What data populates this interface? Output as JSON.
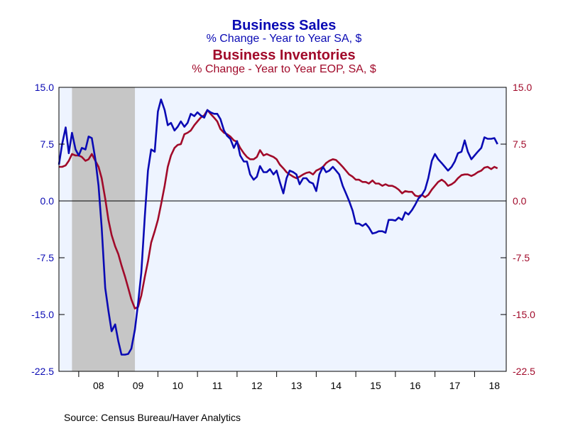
{
  "colors": {
    "sales": "#0a0ab4",
    "inventories": "#a10a2a",
    "plot_background": "#eef4ff",
    "recession_shade": "#c6c6c6"
  },
  "titles": {
    "sales_title": "Business Sales",
    "sales_subtitle": "% Change - Year to Year    SA, $",
    "inv_title": "Business Inventories",
    "inv_subtitle": "% Change - Year to Year    EOP, SA, $"
  },
  "source": "Source:  Census Bureau/Haver Analytics",
  "chart_data": {
    "type": "line",
    "title": "Business Sales / Business Inventories",
    "ylim": [
      -22.5,
      15.0
    ],
    "left_ticks": [
      "15.0",
      "7.5",
      "0.0",
      "-7.5",
      "-15.0",
      "-22.5"
    ],
    "right_ticks": [
      "15.0",
      "7.5",
      "0.0",
      "-7.5",
      "-15.0",
      "-22.5"
    ],
    "x_range": [
      2007.5,
      2018.8
    ],
    "x_ticks": [
      {
        "label": "08",
        "pos": 2008.5
      },
      {
        "label": "09",
        "pos": 2009.5
      },
      {
        "label": "10",
        "pos": 2010.5
      },
      {
        "label": "11",
        "pos": 2011.5
      },
      {
        "label": "12",
        "pos": 2012.5
      },
      {
        "label": "13",
        "pos": 2013.5
      },
      {
        "label": "14",
        "pos": 2014.5
      },
      {
        "label": "15",
        "pos": 2015.5
      },
      {
        "label": "16",
        "pos": 2016.5
      },
      {
        "label": "17",
        "pos": 2017.5
      },
      {
        "label": "18",
        "pos": 2018.5
      }
    ],
    "year_boundaries": [
      2008,
      2009,
      2010,
      2011,
      2012,
      2013,
      2014,
      2015,
      2016,
      2017,
      2018
    ],
    "recession": [
      2007.83,
      2009.42
    ],
    "zero_line": 0.0,
    "series": [
      {
        "name": "Business Sales",
        "color": "#0a0ab4",
        "points": [
          [
            2007.5,
            4.8
          ],
          [
            2007.58,
            7.5
          ],
          [
            2007.67,
            9.7
          ],
          [
            2007.75,
            6.3
          ],
          [
            2007.83,
            9.0
          ],
          [
            2007.92,
            6.8
          ],
          [
            2008.0,
            6.0
          ],
          [
            2008.08,
            7.0
          ],
          [
            2008.17,
            6.8
          ],
          [
            2008.25,
            8.5
          ],
          [
            2008.33,
            8.3
          ],
          [
            2008.42,
            5.5
          ],
          [
            2008.5,
            2.0
          ],
          [
            2008.58,
            -3.5
          ],
          [
            2008.67,
            -11.5
          ],
          [
            2008.75,
            -14.5
          ],
          [
            2008.83,
            -17.2
          ],
          [
            2008.92,
            -16.3
          ],
          [
            2009.0,
            -18.5
          ],
          [
            2009.08,
            -20.3
          ],
          [
            2009.17,
            -20.3
          ],
          [
            2009.25,
            -20.2
          ],
          [
            2009.33,
            -19.5
          ],
          [
            2009.42,
            -17.0
          ],
          [
            2009.5,
            -13.5
          ],
          [
            2009.58,
            -9.5
          ],
          [
            2009.67,
            -2.0
          ],
          [
            2009.75,
            4.0
          ],
          [
            2009.83,
            6.8
          ],
          [
            2009.92,
            6.5
          ],
          [
            2010.0,
            11.8
          ],
          [
            2010.08,
            13.4
          ],
          [
            2010.17,
            12.0
          ],
          [
            2010.25,
            10.0
          ],
          [
            2010.33,
            10.3
          ],
          [
            2010.42,
            9.3
          ],
          [
            2010.5,
            9.8
          ],
          [
            2010.58,
            10.5
          ],
          [
            2010.67,
            9.8
          ],
          [
            2010.75,
            10.3
          ],
          [
            2010.83,
            11.5
          ],
          [
            2010.92,
            11.2
          ],
          [
            2011.0,
            11.7
          ],
          [
            2011.08,
            11.3
          ],
          [
            2011.17,
            11.0
          ],
          [
            2011.25,
            12.0
          ],
          [
            2011.33,
            11.7
          ],
          [
            2011.42,
            11.5
          ],
          [
            2011.5,
            11.5
          ],
          [
            2011.58,
            10.8
          ],
          [
            2011.67,
            9.3
          ],
          [
            2011.75,
            8.6
          ],
          [
            2011.83,
            8.2
          ],
          [
            2011.92,
            7.0
          ],
          [
            2012.0,
            7.9
          ],
          [
            2012.08,
            6.0
          ],
          [
            2012.17,
            5.2
          ],
          [
            2012.25,
            5.2
          ],
          [
            2012.33,
            3.5
          ],
          [
            2012.42,
            2.8
          ],
          [
            2012.5,
            3.2
          ],
          [
            2012.58,
            4.6
          ],
          [
            2012.67,
            3.8
          ],
          [
            2012.75,
            3.8
          ],
          [
            2012.83,
            4.2
          ],
          [
            2012.92,
            3.5
          ],
          [
            2013.0,
            4.0
          ],
          [
            2013.08,
            2.5
          ],
          [
            2013.17,
            1.0
          ],
          [
            2013.25,
            3.0
          ],
          [
            2013.33,
            4.0
          ],
          [
            2013.42,
            3.8
          ],
          [
            2013.5,
            3.5
          ],
          [
            2013.58,
            2.2
          ],
          [
            2013.67,
            3.0
          ],
          [
            2013.75,
            3.0
          ],
          [
            2013.83,
            2.5
          ],
          [
            2013.92,
            2.3
          ],
          [
            2014.0,
            1.3
          ],
          [
            2014.08,
            3.5
          ],
          [
            2014.17,
            4.5
          ],
          [
            2014.25,
            3.8
          ],
          [
            2014.33,
            4.0
          ],
          [
            2014.42,
            4.5
          ],
          [
            2014.5,
            4.0
          ],
          [
            2014.58,
            3.5
          ],
          [
            2014.67,
            2.0
          ],
          [
            2014.75,
            1.0
          ],
          [
            2014.83,
            0.0
          ],
          [
            2014.92,
            -1.3
          ],
          [
            2015.0,
            -3.0
          ],
          [
            2015.08,
            -3.0
          ],
          [
            2015.17,
            -3.3
          ],
          [
            2015.25,
            -3.0
          ],
          [
            2015.33,
            -3.5
          ],
          [
            2015.42,
            -4.3
          ],
          [
            2015.5,
            -4.2
          ],
          [
            2015.58,
            -4.0
          ],
          [
            2015.67,
            -4.0
          ],
          [
            2015.75,
            -4.2
          ],
          [
            2015.83,
            -2.5
          ],
          [
            2015.92,
            -2.5
          ],
          [
            2016.0,
            -2.6
          ],
          [
            2016.08,
            -2.2
          ],
          [
            2016.17,
            -2.5
          ],
          [
            2016.25,
            -1.5
          ],
          [
            2016.33,
            -1.8
          ],
          [
            2016.42,
            -1.2
          ],
          [
            2016.5,
            -0.5
          ],
          [
            2016.58,
            0.3
          ],
          [
            2016.67,
            0.8
          ],
          [
            2016.75,
            1.5
          ],
          [
            2016.83,
            3.0
          ],
          [
            2016.92,
            5.3
          ],
          [
            2017.0,
            6.2
          ],
          [
            2017.08,
            5.5
          ],
          [
            2017.17,
            5.0
          ],
          [
            2017.25,
            4.5
          ],
          [
            2017.33,
            4.0
          ],
          [
            2017.42,
            4.5
          ],
          [
            2017.5,
            5.2
          ],
          [
            2017.58,
            6.3
          ],
          [
            2017.67,
            6.5
          ],
          [
            2017.75,
            8.0
          ],
          [
            2017.83,
            6.5
          ],
          [
            2017.92,
            5.5
          ],
          [
            2018.0,
            6.0
          ],
          [
            2018.08,
            6.5
          ],
          [
            2018.17,
            7.0
          ],
          [
            2018.25,
            8.4
          ],
          [
            2018.33,
            8.2
          ],
          [
            2018.42,
            8.2
          ],
          [
            2018.5,
            8.3
          ],
          [
            2018.58,
            7.5
          ]
        ]
      },
      {
        "name": "Business Inventories",
        "color": "#a10a2a",
        "points": [
          [
            2007.5,
            4.5
          ],
          [
            2007.58,
            4.5
          ],
          [
            2007.67,
            4.7
          ],
          [
            2007.75,
            5.3
          ],
          [
            2007.83,
            6.2
          ],
          [
            2007.92,
            6.0
          ],
          [
            2008.0,
            6.0
          ],
          [
            2008.08,
            5.8
          ],
          [
            2008.17,
            5.3
          ],
          [
            2008.25,
            5.5
          ],
          [
            2008.33,
            6.2
          ],
          [
            2008.42,
            5.3
          ],
          [
            2008.5,
            4.5
          ],
          [
            2008.58,
            3.0
          ],
          [
            2008.67,
            0.3
          ],
          [
            2008.75,
            -2.5
          ],
          [
            2008.83,
            -4.5
          ],
          [
            2008.92,
            -6.0
          ],
          [
            2009.0,
            -7.0
          ],
          [
            2009.08,
            -8.5
          ],
          [
            2009.17,
            -10.0
          ],
          [
            2009.25,
            -11.5
          ],
          [
            2009.33,
            -13.0
          ],
          [
            2009.42,
            -14.2
          ],
          [
            2009.5,
            -14.0
          ],
          [
            2009.58,
            -12.5
          ],
          [
            2009.67,
            -10.0
          ],
          [
            2009.75,
            -8.0
          ],
          [
            2009.83,
            -5.5
          ],
          [
            2009.92,
            -4.0
          ],
          [
            2010.0,
            -2.5
          ],
          [
            2010.08,
            -0.5
          ],
          [
            2010.17,
            2.0
          ],
          [
            2010.25,
            4.5
          ],
          [
            2010.33,
            6.0
          ],
          [
            2010.42,
            7.0
          ],
          [
            2010.5,
            7.4
          ],
          [
            2010.58,
            7.5
          ],
          [
            2010.67,
            8.8
          ],
          [
            2010.75,
            9.0
          ],
          [
            2010.83,
            9.3
          ],
          [
            2010.92,
            10.0
          ],
          [
            2011.0,
            10.5
          ],
          [
            2011.08,
            11.0
          ],
          [
            2011.17,
            11.3
          ],
          [
            2011.25,
            12.0
          ],
          [
            2011.33,
            11.5
          ],
          [
            2011.42,
            11.0
          ],
          [
            2011.5,
            10.5
          ],
          [
            2011.58,
            9.5
          ],
          [
            2011.67,
            9.0
          ],
          [
            2011.75,
            8.8
          ],
          [
            2011.83,
            8.5
          ],
          [
            2011.92,
            8.0
          ],
          [
            2012.0,
            7.8
          ],
          [
            2012.08,
            7.0
          ],
          [
            2012.17,
            6.3
          ],
          [
            2012.25,
            5.8
          ],
          [
            2012.33,
            5.5
          ],
          [
            2012.42,
            5.5
          ],
          [
            2012.5,
            5.8
          ],
          [
            2012.58,
            6.7
          ],
          [
            2012.67,
            6.0
          ],
          [
            2012.75,
            6.2
          ],
          [
            2012.83,
            6.0
          ],
          [
            2012.92,
            5.8
          ],
          [
            2013.0,
            5.5
          ],
          [
            2013.08,
            4.8
          ],
          [
            2013.17,
            4.3
          ],
          [
            2013.25,
            3.8
          ],
          [
            2013.33,
            3.5
          ],
          [
            2013.42,
            3.2
          ],
          [
            2013.5,
            3.0
          ],
          [
            2013.58,
            3.2
          ],
          [
            2013.67,
            3.5
          ],
          [
            2013.75,
            3.7
          ],
          [
            2013.83,
            3.8
          ],
          [
            2013.92,
            3.5
          ],
          [
            2014.0,
            4.0
          ],
          [
            2014.08,
            4.2
          ],
          [
            2014.17,
            4.5
          ],
          [
            2014.25,
            5.0
          ],
          [
            2014.33,
            5.3
          ],
          [
            2014.42,
            5.5
          ],
          [
            2014.5,
            5.4
          ],
          [
            2014.58,
            5.0
          ],
          [
            2014.67,
            4.5
          ],
          [
            2014.75,
            4.0
          ],
          [
            2014.83,
            3.5
          ],
          [
            2014.92,
            3.2
          ],
          [
            2015.0,
            2.8
          ],
          [
            2015.08,
            2.8
          ],
          [
            2015.17,
            2.5
          ],
          [
            2015.25,
            2.5
          ],
          [
            2015.33,
            2.3
          ],
          [
            2015.42,
            2.7
          ],
          [
            2015.5,
            2.3
          ],
          [
            2015.58,
            2.3
          ],
          [
            2015.67,
            2.0
          ],
          [
            2015.75,
            2.2
          ],
          [
            2015.83,
            2.0
          ],
          [
            2015.92,
            2.0
          ],
          [
            2016.0,
            1.8
          ],
          [
            2016.08,
            1.5
          ],
          [
            2016.17,
            1.0
          ],
          [
            2016.25,
            1.3
          ],
          [
            2016.33,
            1.2
          ],
          [
            2016.42,
            1.2
          ],
          [
            2016.5,
            0.7
          ],
          [
            2016.58,
            0.6
          ],
          [
            2016.67,
            0.8
          ],
          [
            2016.75,
            0.5
          ],
          [
            2016.83,
            0.8
          ],
          [
            2016.92,
            1.5
          ],
          [
            2017.0,
            2.0
          ],
          [
            2017.08,
            2.5
          ],
          [
            2017.17,
            2.8
          ],
          [
            2017.25,
            2.5
          ],
          [
            2017.33,
            2.0
          ],
          [
            2017.42,
            2.2
          ],
          [
            2017.5,
            2.5
          ],
          [
            2017.58,
            3.0
          ],
          [
            2017.67,
            3.4
          ],
          [
            2017.75,
            3.5
          ],
          [
            2017.83,
            3.5
          ],
          [
            2017.92,
            3.3
          ],
          [
            2018.0,
            3.5
          ],
          [
            2018.08,
            3.8
          ],
          [
            2018.17,
            4.0
          ],
          [
            2018.25,
            4.4
          ],
          [
            2018.33,
            4.5
          ],
          [
            2018.42,
            4.2
          ],
          [
            2018.5,
            4.5
          ],
          [
            2018.58,
            4.3
          ]
        ]
      }
    ]
  }
}
